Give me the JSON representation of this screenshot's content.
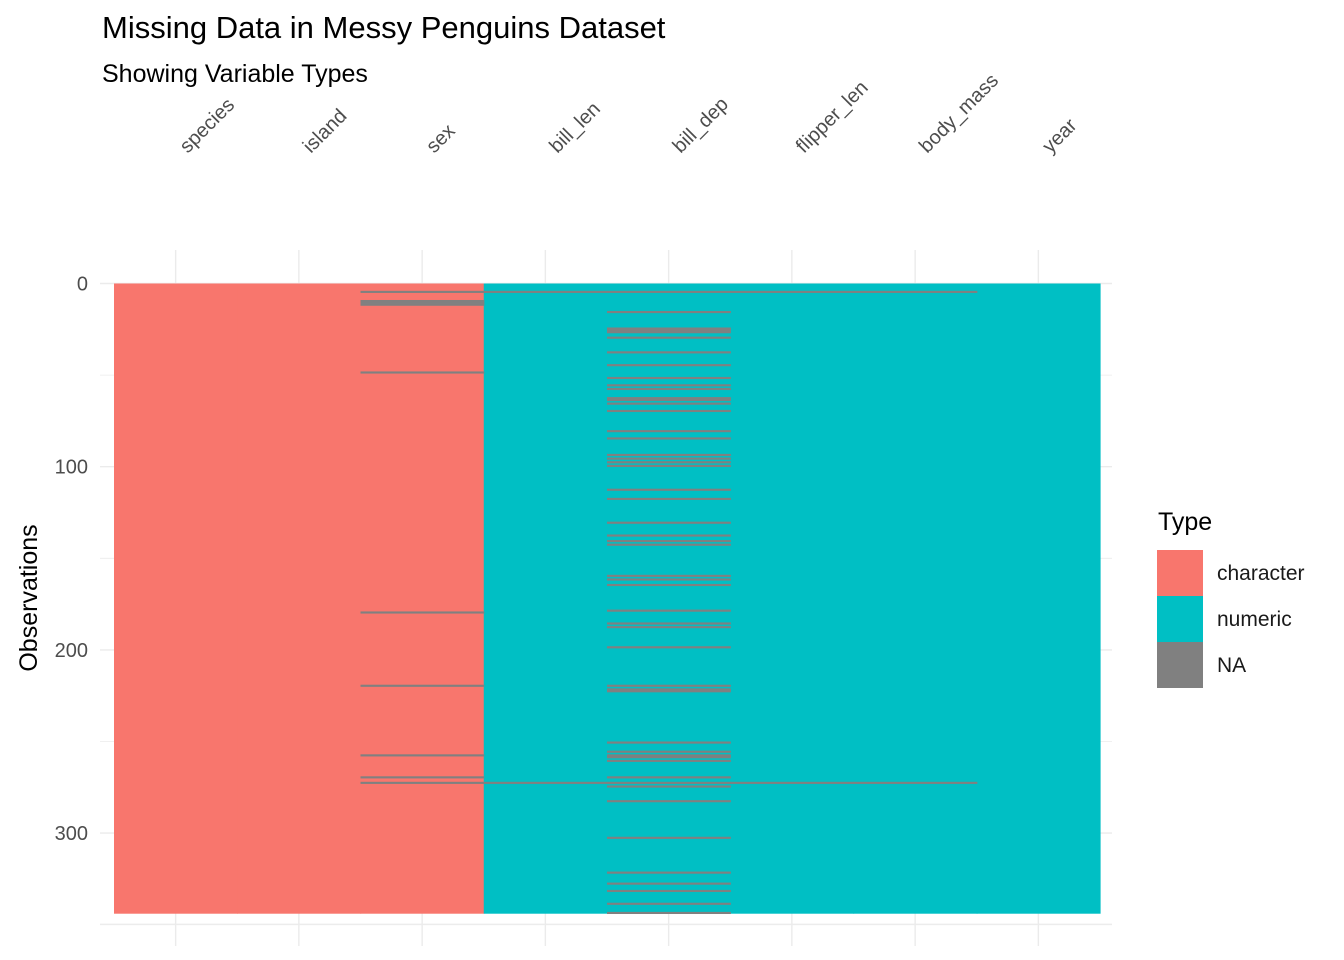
{
  "chart_data": {
    "type": "heatmap",
    "title": "Missing Data in Messy Penguins Dataset",
    "subtitle": "Showing Variable Types",
    "xlabel": "",
    "ylabel": "Observations",
    "x_axis_position": "top",
    "columns": [
      "species",
      "island",
      "sex",
      "bill_len",
      "bill_dep",
      "flipper_len",
      "body_mass",
      "year"
    ],
    "column_types": [
      "character",
      "character",
      "character",
      "numeric",
      "numeric",
      "numeric",
      "numeric",
      "numeric"
    ],
    "n_rows": 344,
    "ylim": [
      0,
      344
    ],
    "y_reversed": true,
    "y_ticks": [
      0,
      100,
      200,
      300
    ],
    "grid": true,
    "legend": {
      "title": "Type",
      "position": "right",
      "entries": [
        {
          "label": "character",
          "color": "#F8766D"
        },
        {
          "label": "numeric",
          "color": "#00BFC4"
        },
        {
          "label": "NA",
          "color": "#808080"
        }
      ]
    },
    "missing_rows": {
      "species": [],
      "island": [],
      "sex": [
        4,
        9,
        10,
        11,
        48,
        179,
        219,
        257,
        269,
        272
      ],
      "bill_len": [
        4,
        272
      ],
      "bill_dep": [
        4,
        15,
        24,
        25,
        26,
        29,
        37,
        44,
        51,
        55,
        57,
        62,
        63,
        65,
        69,
        80,
        84,
        93,
        95,
        97,
        99,
        112,
        117,
        130,
        137,
        140,
        142,
        159,
        161,
        164,
        178,
        185,
        187,
        198,
        219,
        221,
        222,
        250,
        255,
        257,
        258,
        260,
        269,
        272,
        274,
        282,
        302,
        321,
        327,
        331,
        338,
        343
      ],
      "flipper_len": [
        4,
        272
      ],
      "body_mass": [
        4,
        272
      ],
      "year": []
    }
  }
}
